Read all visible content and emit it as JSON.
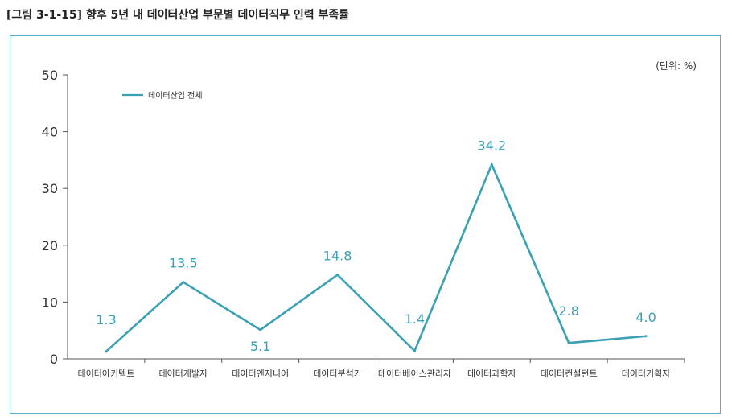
{
  "figure_title": "[그림 3-1-15] 향후 5년 내 데이터산업 부문별 데이터직무 인력 부족률",
  "colors": {
    "series": "#3aa1b5",
    "frame": "#4fb3c4"
  },
  "chart_data": {
    "type": "line",
    "title": "[그림 3-1-15] 향후 5년 내 데이터산업 부문별 데이터직무 인력 부족률",
    "unit_label": "(단위: %)",
    "xlabel": "",
    "ylabel": "",
    "ylim": [
      0,
      50
    ],
    "yticks": [
      0,
      10,
      20,
      30,
      40,
      50
    ],
    "legend_position": "top-left",
    "categories": [
      "데이터아키텍트",
      "데이터개발자",
      "데이터엔지니어",
      "데이터분석가",
      "데이터베이스관리자",
      "데이터과학자",
      "데이터컨설턴트",
      "데이터기획자"
    ],
    "series": [
      {
        "name": "데이터산업 전체",
        "values": [
          1.3,
          13.5,
          5.1,
          14.8,
          1.4,
          34.2,
          2.8,
          4.0
        ],
        "labels": [
          "1.3",
          "13.5",
          "5.1",
          "14.8",
          "1.4",
          "34.2",
          "2.8",
          "4.0"
        ]
      }
    ]
  }
}
